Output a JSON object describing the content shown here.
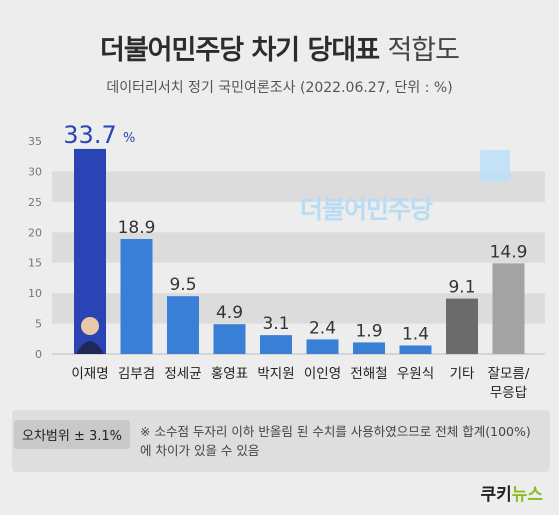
{
  "header": {
    "title_main": "더불어민주당 차기 당대표",
    "title_light": "적합도",
    "subtitle": "데이터리서치 정기 국민여론조사 (2022.06.27, 단위 : %)"
  },
  "watermark": "더불어민주당",
  "note": {
    "badge": "오차범위 ± 3.1%",
    "text": "※ 소수점 두자리 이하 반올림 된 수치를 사용하였으므로 전체 합계(100%)에 차이가 있을 수 있음"
  },
  "footer": {
    "brand_a": "쿠키",
    "brand_b": "뉴스"
  },
  "chart_data": {
    "type": "bar",
    "categories": [
      "이재명",
      "김부겸",
      "정세균",
      "홍영표",
      "박지원",
      "이인영",
      "전해철",
      "우원식",
      "기타",
      "잘모름/\n무응답"
    ],
    "values": [
      33.7,
      18.9,
      9.5,
      4.9,
      3.1,
      2.4,
      1.9,
      1.4,
      9.1,
      14.9
    ],
    "value_labels": [
      "33.7",
      "18.9",
      "9.5",
      "4.9",
      "3.1",
      "2.4",
      "1.9",
      "1.4",
      "9.1",
      "14.9"
    ],
    "first_value_suffix": "%",
    "ylim": [
      0,
      35
    ],
    "yticks": [
      0,
      5,
      10,
      15,
      20,
      25,
      30,
      35
    ],
    "colors": {
      "leader": "#2a44b5",
      "candidate": "#3a7fd6",
      "other": "#6b6b6b",
      "unknown": "#a3a3a3",
      "band": "#dcdcdc"
    },
    "bar_color_keys": [
      "leader",
      "candidate",
      "candidate",
      "candidate",
      "candidate",
      "candidate",
      "candidate",
      "candidate",
      "other",
      "unknown"
    ]
  }
}
